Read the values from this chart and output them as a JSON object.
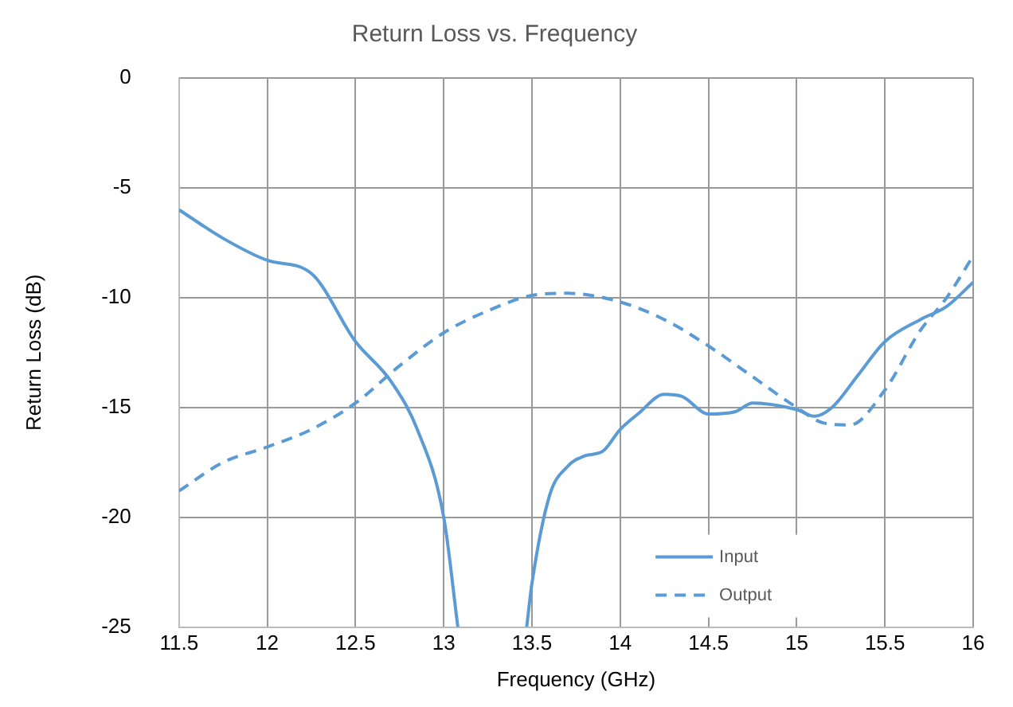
{
  "chart_data": {
    "type": "line",
    "title": "Return Loss vs. Frequency",
    "xlabel": "Frequency (GHz)",
    "ylabel": "Return Loss (dB)",
    "xlim": [
      11.5,
      16
    ],
    "xticks": [
      11.5,
      12,
      12.5,
      13,
      13.5,
      14,
      14.5,
      15,
      15.5,
      16
    ],
    "ylim": [
      -25,
      0
    ],
    "yticks": [
      -25,
      -20,
      -15,
      -10,
      -5,
      0
    ],
    "grid": true,
    "legend": "bottom right",
    "marker": "none",
    "series": [
      {
        "name": "Input",
        "color": "#5b9bd5",
        "line_style": "solid",
        "x": [
          11.5,
          11.75,
          12,
          12.25,
          12.5,
          12.7,
          12.85,
          13,
          13.08,
          13.3,
          13.47,
          13.5,
          13.6,
          13.7,
          13.8,
          13.9,
          14,
          14.1,
          14.25,
          14.35,
          14.5,
          14.65,
          14.75,
          15,
          15.1,
          15.2,
          15.35,
          15.5,
          15.7,
          15.85,
          16
        ],
        "values": [
          -6,
          -7.3,
          -8.3,
          -8.9,
          -12,
          -13.8,
          -16,
          -20,
          -25,
          null,
          -25,
          -23,
          -19,
          -17.7,
          -17.2,
          -17,
          -16,
          -15.3,
          -14.4,
          -14.5,
          -15.3,
          -15.2,
          -14.8,
          -15.1,
          -15.4,
          -15,
          -13.5,
          -12,
          -11,
          -10.4,
          -9.3
        ]
      },
      {
        "name": "Output",
        "color": "#5b9bd5",
        "line_style": "dashed",
        "x": [
          11.5,
          11.75,
          12,
          12.25,
          12.5,
          12.75,
          13,
          13.25,
          13.5,
          13.7,
          14,
          14.25,
          14.5,
          14.75,
          15,
          15.15,
          15.3,
          15.5,
          15.7,
          15.85,
          16
        ],
        "values": [
          -18.8,
          -17.5,
          -16.8,
          -16,
          -14.8,
          -13.1,
          -11.6,
          -10.6,
          -9.9,
          -9.8,
          -10.2,
          -11,
          -12.2,
          -13.6,
          -15,
          -15.7,
          -15.8,
          -14.2,
          -11.5,
          -10,
          -8.1
        ]
      }
    ]
  }
}
